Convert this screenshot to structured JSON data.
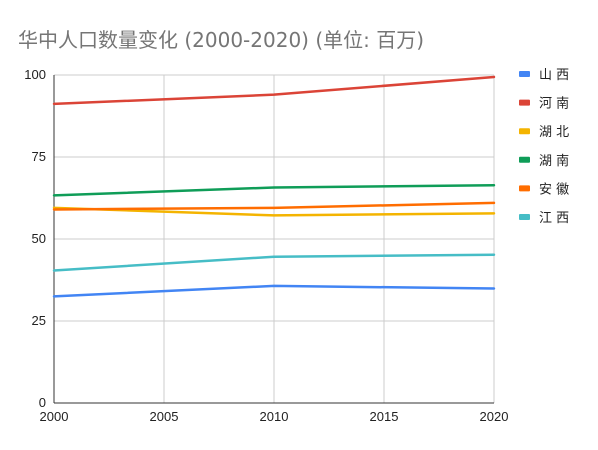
{
  "chart_data": {
    "type": "line",
    "title": "华中人口数量变化 (2000-2020) (单位: 百万)",
    "xlabel": "",
    "ylabel": "",
    "x": [
      2000,
      2010,
      2020
    ],
    "x_ticks": [
      "2000",
      "2005",
      "2010",
      "2015",
      "2020"
    ],
    "xlim": [
      2000,
      2020
    ],
    "y_ticks": [
      "0",
      "25",
      "50",
      "75",
      "100"
    ],
    "ylim": [
      0,
      100
    ],
    "grid": true,
    "legend_position": "right",
    "series": [
      {
        "name": "山 西",
        "color": "#4285f4",
        "values": [
          32.5,
          35.7,
          34.9
        ]
      },
      {
        "name": "河 南",
        "color": "#db4437",
        "values": [
          91.2,
          94.0,
          99.4
        ]
      },
      {
        "name": "湖 北",
        "color": "#f4b400",
        "values": [
          59.5,
          57.2,
          57.8
        ]
      },
      {
        "name": "湖 南",
        "color": "#0f9d58",
        "values": [
          63.3,
          65.7,
          66.4
        ]
      },
      {
        "name": "安 徽",
        "color": "#ff6d00",
        "values": [
          59.0,
          59.5,
          61.0
        ]
      },
      {
        "name": "江 西",
        "color": "#46bdc6",
        "values": [
          40.4,
          44.6,
          45.2
        ]
      }
    ]
  }
}
